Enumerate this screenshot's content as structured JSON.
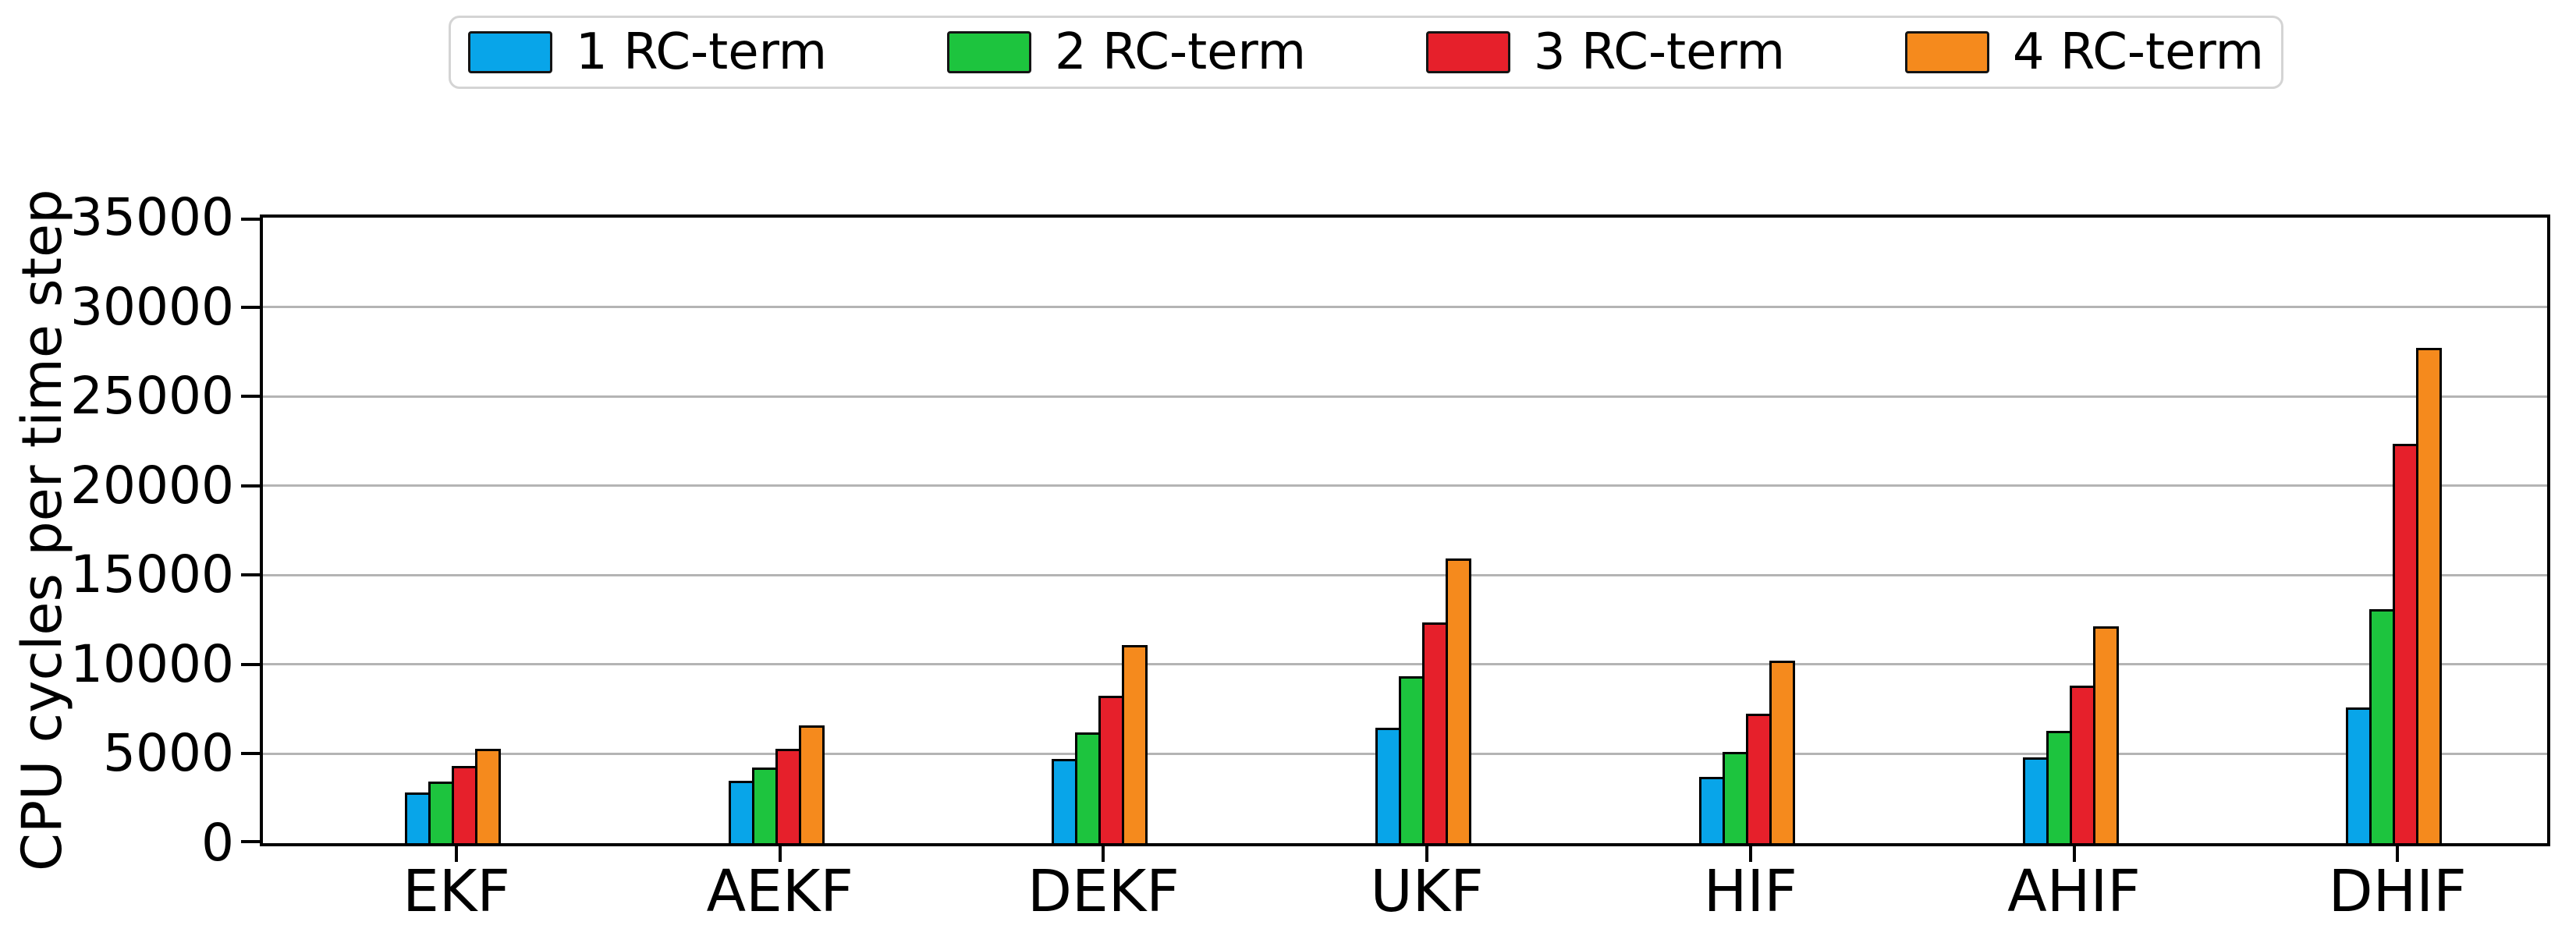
{
  "chart_data": {
    "type": "bar",
    "title": "",
    "xlabel": "",
    "ylabel": "CPU cycles per time step",
    "ylim": [
      0,
      35000
    ],
    "yticks": [
      0,
      5000,
      10000,
      15000,
      20000,
      25000,
      30000,
      35000
    ],
    "ytick_labels": [
      "0",
      "5000",
      "10000",
      "15000",
      "20000",
      "25000",
      "30000",
      "35000"
    ],
    "grid": "horizontal-gridlines-on",
    "legend_position": "top-center",
    "categories": [
      "EKF",
      "AEKF",
      "DEKF",
      "UKF",
      "HIF",
      "AHIF",
      "DHIF"
    ],
    "series": [
      {
        "name": "1 RC-term",
        "color": "#08a5e9",
        "values": [
          2850,
          3500,
          4700,
          6450,
          3700,
          4800,
          7600
        ]
      },
      {
        "name": "2 RC-term",
        "color": "#1dc43e",
        "values": [
          3450,
          4250,
          6200,
          9350,
          5100,
          6300,
          13100
        ]
      },
      {
        "name": "3 RC-term",
        "color": "#e6202b",
        "values": [
          4300,
          5300,
          8250,
          12350,
          7250,
          8800,
          22350
        ]
      },
      {
        "name": "4 RC-term",
        "color": "#f58a1d",
        "values": [
          5300,
          6600,
          11100,
          15950,
          10200,
          12150,
          27700
        ]
      }
    ],
    "colors": {
      "bar_edge": "#000000",
      "gridline": "#b4b4b4",
      "axis": "#000000",
      "legend_border": "#d4d4d4",
      "background": "#ffffff"
    }
  }
}
